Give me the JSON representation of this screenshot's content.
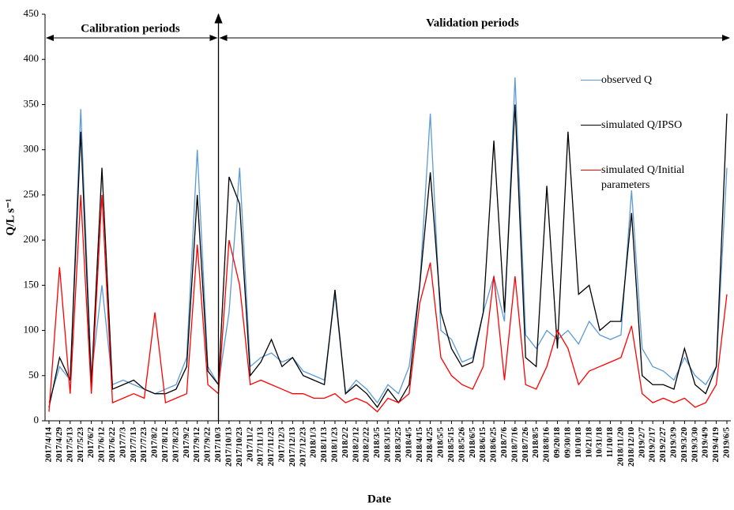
{
  "chart_data": {
    "type": "line",
    "x_label": "Date",
    "y_label": "Q/L s⁻¹",
    "annotations": [
      "Calibration periods",
      "Validation periods"
    ],
    "categories": [
      "2017/4/14",
      "2017/4/29",
      "2017/5/13",
      "2017/5/23",
      "2017/6/2",
      "2017/6/12",
      "2017/6/22",
      "2017/7/3",
      "2017/7/13",
      "2017/7/23",
      "2017/8/2",
      "2017/8/12",
      "2017/8/23",
      "2017/9/2",
      "2017/9/12",
      "2017/9/22",
      "2017/10/3",
      "2017/10/13",
      "2017/10/23",
      "2017/11/2",
      "2017/11/13",
      "2017/11/23",
      "2017/12/3",
      "2017/12/13",
      "2017/12/23",
      "2018/1/3",
      "2018/1/13",
      "2018/1/23",
      "2018/2/2",
      "2018/2/12",
      "2018/2/22",
      "2018/3/5",
      "2018/3/15",
      "2018/3/25",
      "2018/4/5",
      "2018/4/15",
      "2018/4/25",
      "2018/5/5",
      "2018/5/15",
      "2018/5/26",
      "2018/6/5",
      "2018/6/15",
      "2018/6/25",
      "2018/7/6",
      "2018/7/16",
      "2018/7/26",
      "2018/8/5",
      "2018/8/16",
      "09/20/18",
      "09/30/18",
      "10/10/18",
      "10/21/18",
      "10/31/18",
      "11/10/18",
      "2018/11/20",
      "2018/12/10",
      "2019/2/7",
      "2019/2/17",
      "2019/2/27",
      "2019/3/9",
      "2019/3/20",
      "2019/3/30",
      "2019/4/9",
      "2019/4/19",
      "2019/6/5"
    ],
    "series": [
      {
        "name": "observed Q",
        "color": "#5b9bd5",
        "values": [
          20,
          60,
          45,
          345,
          50,
          150,
          40,
          45,
          40,
          35,
          30,
          35,
          40,
          70,
          300,
          60,
          40,
          120,
          280,
          60,
          70,
          75,
          65,
          70,
          55,
          50,
          45,
          140,
          30,
          45,
          35,
          20,
          40,
          30,
          60,
          150,
          340,
          100,
          90,
          65,
          70,
          120,
          160,
          110,
          380,
          95,
          80,
          100,
          90,
          100,
          85,
          110,
          95,
          90,
          95,
          255,
          80,
          60,
          55,
          45,
          70,
          50,
          40,
          60,
          280
        ]
      },
      {
        "name": "simulated Q/IPSO",
        "color": "#000000",
        "values": [
          15,
          70,
          45,
          320,
          40,
          280,
          35,
          40,
          45,
          35,
          30,
          30,
          35,
          60,
          250,
          55,
          40,
          270,
          240,
          50,
          65,
          90,
          60,
          70,
          50,
          45,
          40,
          145,
          30,
          40,
          30,
          15,
          35,
          20,
          40,
          150,
          275,
          120,
          80,
          60,
          65,
          120,
          310,
          120,
          350,
          70,
          60,
          260,
          80,
          320,
          140,
          150,
          100,
          110,
          110,
          230,
          50,
          40,
          40,
          35,
          80,
          40,
          30,
          60,
          340
        ]
      },
      {
        "name": "simulated Q/Initial parameters",
        "color": "#ff0000",
        "values": [
          10,
          170,
          30,
          250,
          30,
          250,
          20,
          25,
          30,
          25,
          120,
          20,
          25,
          30,
          195,
          40,
          30,
          200,
          150,
          40,
          45,
          40,
          35,
          30,
          30,
          25,
          25,
          30,
          20,
          25,
          20,
          10,
          25,
          20,
          30,
          130,
          175,
          70,
          50,
          40,
          35,
          60,
          160,
          45,
          160,
          40,
          35,
          60,
          100,
          80,
          40,
          55,
          60,
          65,
          70,
          105,
          30,
          20,
          25,
          20,
          25,
          15,
          20,
          40,
          140
        ]
      }
    ],
    "ylim": [
      0,
      450
    ],
    "yticks": [
      0,
      50,
      100,
      150,
      200,
      250,
      300,
      350,
      400,
      450
    ]
  }
}
